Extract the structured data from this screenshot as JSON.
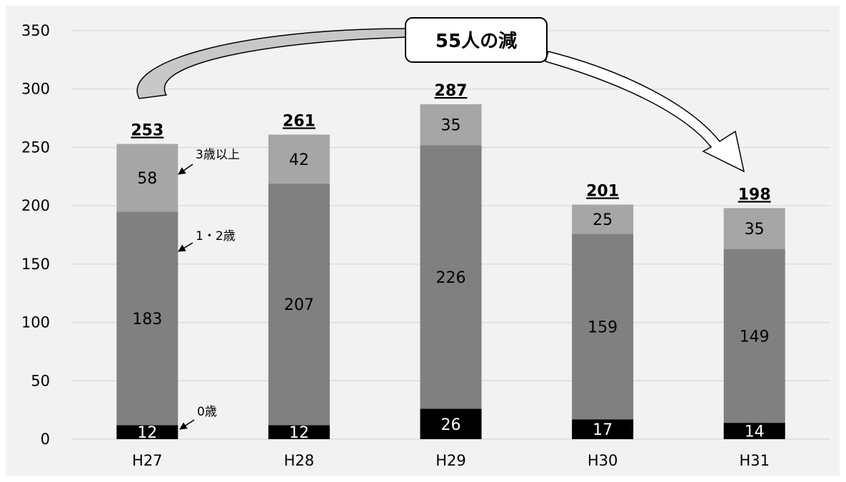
{
  "chart_data": {
    "type": "bar",
    "stacked": true,
    "categories": [
      "H27",
      "H28",
      "H29",
      "H30",
      "H31"
    ],
    "series": [
      {
        "name": "0歳",
        "values": [
          12,
          12,
          26,
          17,
          14
        ],
        "color": "#000000"
      },
      {
        "name": "1・2歳",
        "values": [
          183,
          207,
          226,
          159,
          149
        ],
        "color": "#808080"
      },
      {
        "name": "3歳以上",
        "values": [
          58,
          42,
          35,
          25,
          35
        ],
        "color": "#a6a6a6"
      }
    ],
    "totals": [
      "253",
      "261",
      "287",
      "201",
      "198"
    ],
    "y_ticks": [
      "0",
      "50",
      "100",
      "150",
      "200",
      "250",
      "300",
      "350"
    ],
    "ylim": [
      0,
      350
    ],
    "grid": true,
    "callout": "55人の減",
    "annotations": {
      "age3plus": "3歳以上",
      "age12": "1・2歳",
      "age0": "0歳"
    },
    "colors": {
      "background": "#f2f2f2",
      "grid": "#d9d9d9"
    }
  }
}
